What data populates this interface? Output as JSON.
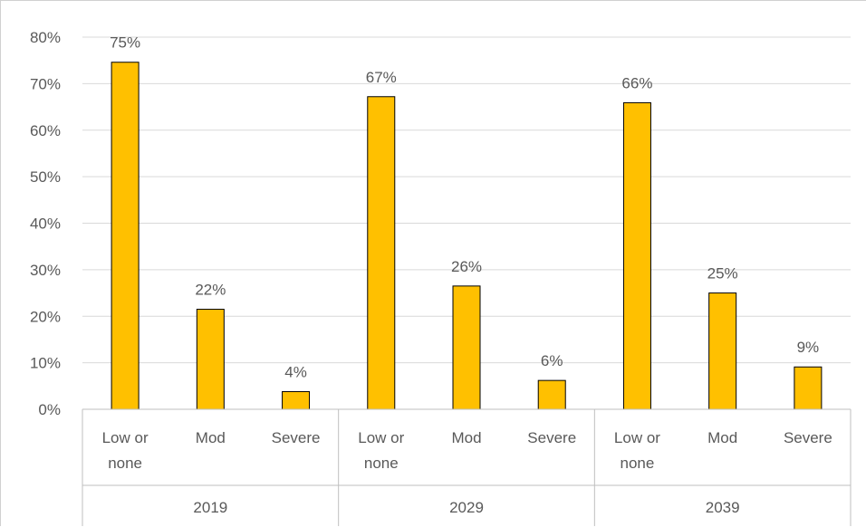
{
  "chart_data": {
    "type": "bar",
    "title": "",
    "xlabel": "",
    "ylabel": "",
    "ylim": [
      0,
      80
    ],
    "y_tick_values": [
      0,
      10,
      20,
      30,
      40,
      50,
      60,
      70,
      80
    ],
    "y_tick_labels": [
      "0%",
      "10%",
      "20%",
      "30%",
      "40%",
      "50%",
      "60%",
      "70%",
      "80%"
    ],
    "grid": true,
    "legend": "none",
    "bar_color": "#FFC000",
    "bar_outline_color": "#000000",
    "groups": [
      {
        "label": "2019",
        "categories": [
          {
            "name": [
              "Low or",
              "none"
            ],
            "value": 74.6,
            "label": "75%"
          },
          {
            "name": [
              "Mod"
            ],
            "value": 21.5,
            "label": "22%"
          },
          {
            "name": [
              "Severe"
            ],
            "value": 3.8,
            "label": "4%"
          }
        ]
      },
      {
        "label": "2029",
        "categories": [
          {
            "name": [
              "Low or",
              "none"
            ],
            "value": 67.2,
            "label": "67%"
          },
          {
            "name": [
              "Mod"
            ],
            "value": 26.5,
            "label": "26%"
          },
          {
            "name": [
              "Severe"
            ],
            "value": 6.2,
            "label": "6%"
          }
        ]
      },
      {
        "label": "2039",
        "categories": [
          {
            "name": [
              "Low or",
              "none"
            ],
            "value": 65.9,
            "label": "66%"
          },
          {
            "name": [
              "Mod"
            ],
            "value": 25.0,
            "label": "25%"
          },
          {
            "name": [
              "Severe"
            ],
            "value": 9.1,
            "label": "9%"
          }
        ]
      }
    ]
  }
}
